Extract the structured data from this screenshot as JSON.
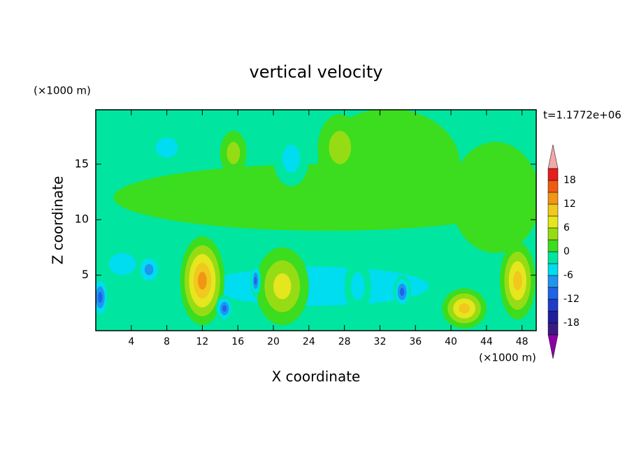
{
  "chart_data": {
    "type": "contour",
    "title": "vertical velocity",
    "x_label": "X coordinate",
    "y_label": "Z coordinate",
    "x_unit": "(×1000 m)",
    "y_unit": "(×1000 m)",
    "time_label": "t=1.1772e+06",
    "xlim": [
      0,
      49.6
    ],
    "ylim": [
      0,
      19.9
    ],
    "xticks": [
      4,
      8,
      12,
      16,
      20,
      24,
      28,
      32,
      36,
      40,
      44,
      48
    ],
    "yticks": [
      5,
      10,
      15
    ],
    "levels": [
      -21,
      -18,
      -15,
      -12,
      -9,
      -6,
      -3,
      0,
      3,
      6,
      9,
      12,
      15,
      18,
      21
    ],
    "colors": [
      "#8c00a8",
      "#3a1a80",
      "#1e1e9c",
      "#1e3cc8",
      "#1e64e6",
      "#1e96f0",
      "#00dcf0",
      "#00e6a0",
      "#3cdc1e",
      "#96dc14",
      "#e6e61e",
      "#f0c81e",
      "#f09614",
      "#f05a14",
      "#e61e1e",
      "#f0a8a8"
    ],
    "cbticks": [
      18,
      12,
      6,
      0,
      -6,
      -12,
      -18
    ],
    "features": [
      {
        "x": 25,
        "z": 4,
        "value": -4,
        "sx": 25,
        "sz": 3.5
      },
      {
        "x": 26,
        "z": 12,
        "value": 1,
        "sx": 24,
        "sz": 3
      },
      {
        "x": 33,
        "z": 15,
        "value": 2,
        "sx": 8,
        "sz": 5
      },
      {
        "x": 45,
        "z": 12,
        "value": 2,
        "sx": 5,
        "sz": 5
      },
      {
        "x": 27.5,
        "z": 16.5,
        "value": 4,
        "sx": 2.5,
        "sz": 3
      },
      {
        "x": 15.5,
        "z": 16,
        "value": 4,
        "sx": 1.5,
        "sz": 2
      },
      {
        "x": 8,
        "z": 16.5,
        "value": -4,
        "sx": 2.5,
        "sz": 1.8
      },
      {
        "x": 22,
        "z": 15.5,
        "value": -4,
        "sx": 2,
        "sz": 2.5
      },
      {
        "x": 3,
        "z": 6,
        "value": -5,
        "sx": 3,
        "sz": 2
      },
      {
        "x": 29.5,
        "z": 4,
        "value": -6,
        "sx": 1.5,
        "sz": 2.5
      },
      {
        "x": 12,
        "z": 4.5,
        "value": 13,
        "sx": 2.5,
        "sz": 4
      },
      {
        "x": 21,
        "z": 4,
        "value": 8,
        "sx": 3,
        "sz": 3.5
      },
      {
        "x": 47.5,
        "z": 4.5,
        "value": 10,
        "sx": 2,
        "sz": 3.5
      },
      {
        "x": 41.5,
        "z": 2,
        "value": 10,
        "sx": 2.5,
        "sz": 1.8
      },
      {
        "x": 0.5,
        "z": 3,
        "value": -11,
        "sx": 1,
        "sz": 2
      },
      {
        "x": 6,
        "z": 5.5,
        "value": -9,
        "sx": 1.5,
        "sz": 1.5
      },
      {
        "x": 14.5,
        "z": 2,
        "value": -10,
        "sx": 1,
        "sz": 1.2
      },
      {
        "x": 18,
        "z": 4.5,
        "value": -10,
        "sx": 0.6,
        "sz": 1.5
      },
      {
        "x": 34.5,
        "z": 3.5,
        "value": -10,
        "sx": 1,
        "sz": 1.5
      }
    ]
  }
}
